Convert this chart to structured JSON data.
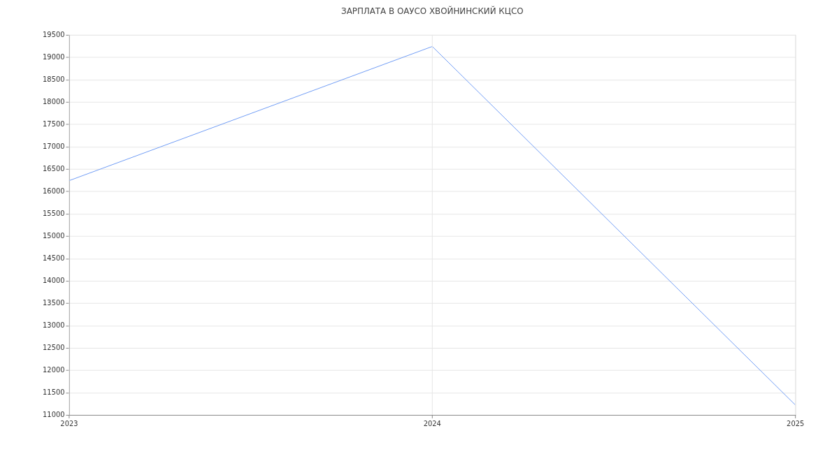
{
  "chart_data": {
    "type": "line",
    "title": "ЗАРПЛАТА В ОАУСО ХВОЙНИНСКИЙ КЦСО",
    "x": [
      2023,
      2024,
      2025
    ],
    "series": [
      {
        "color": "#6f9cf5",
        "values": [
          16240,
          19240,
          11220
        ]
      }
    ],
    "xlim": [
      2023,
      2025
    ],
    "xticks": [
      2023,
      2024,
      2025
    ],
    "ylim": [
      11000,
      19500
    ],
    "yticks": [
      11000,
      11500,
      12000,
      12500,
      13000,
      13500,
      14000,
      14500,
      15000,
      15500,
      16000,
      16500,
      17000,
      17500,
      18000,
      18500,
      19000,
      19500
    ],
    "grid": true,
    "legend": false,
    "marker": "none",
    "line_style": "solid"
  }
}
